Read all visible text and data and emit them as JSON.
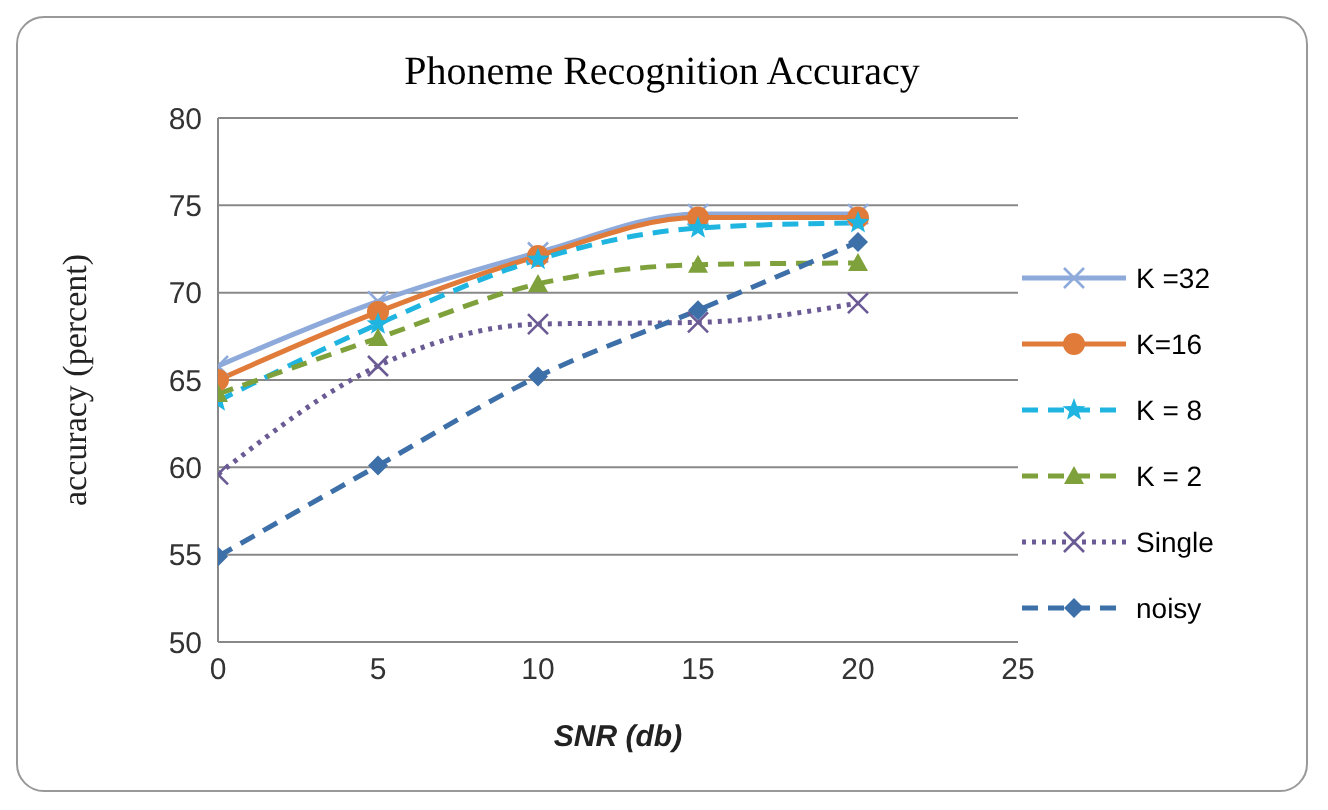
{
  "chart_data": {
    "type": "line",
    "title": "Phoneme Recognition Accuracy",
    "xlabel": "SNR  (db)",
    "ylabel": "accuracy  (percent)",
    "x": [
      0,
      5,
      10,
      15,
      20
    ],
    "series": [
      {
        "name": "K =32",
        "color": "#8eaadb",
        "values": [
          65.8,
          69.5,
          72.3,
          74.5,
          74.5
        ],
        "marker": "cross",
        "line_style": "solid"
      },
      {
        "name": "K=16",
        "color": "#e07b39",
        "values": [
          65.0,
          68.9,
          72.1,
          74.3,
          74.3
        ],
        "marker": "circle",
        "line_style": "solid"
      },
      {
        "name": "K = 8",
        "color": "#1fb5e0",
        "values": [
          63.8,
          68.2,
          71.9,
          73.7,
          74.0
        ],
        "marker": "star",
        "line_style": "dashed"
      },
      {
        "name": "K = 2",
        "color": "#7fa13b",
        "values": [
          64.2,
          67.4,
          70.5,
          71.6,
          71.7
        ],
        "marker": "triangle",
        "line_style": "dashed"
      },
      {
        "name": "Single",
        "color": "#6b5b95",
        "values": [
          59.6,
          65.8,
          68.2,
          68.3,
          69.4
        ],
        "marker": "cross",
        "line_style": "dotted"
      },
      {
        "name": "noisy",
        "color": "#3d6fa8",
        "values": [
          54.9,
          60.1,
          65.2,
          69.0,
          72.9
        ],
        "marker": "diamond",
        "line_style": "dashed"
      }
    ],
    "xlim": [
      0,
      25
    ],
    "xticks": [
      0,
      5,
      10,
      15,
      20,
      25
    ],
    "ylim": [
      50,
      80
    ],
    "yticks": [
      50,
      55,
      60,
      65,
      70,
      75,
      80
    ],
    "grid": "y",
    "legend": "right"
  }
}
